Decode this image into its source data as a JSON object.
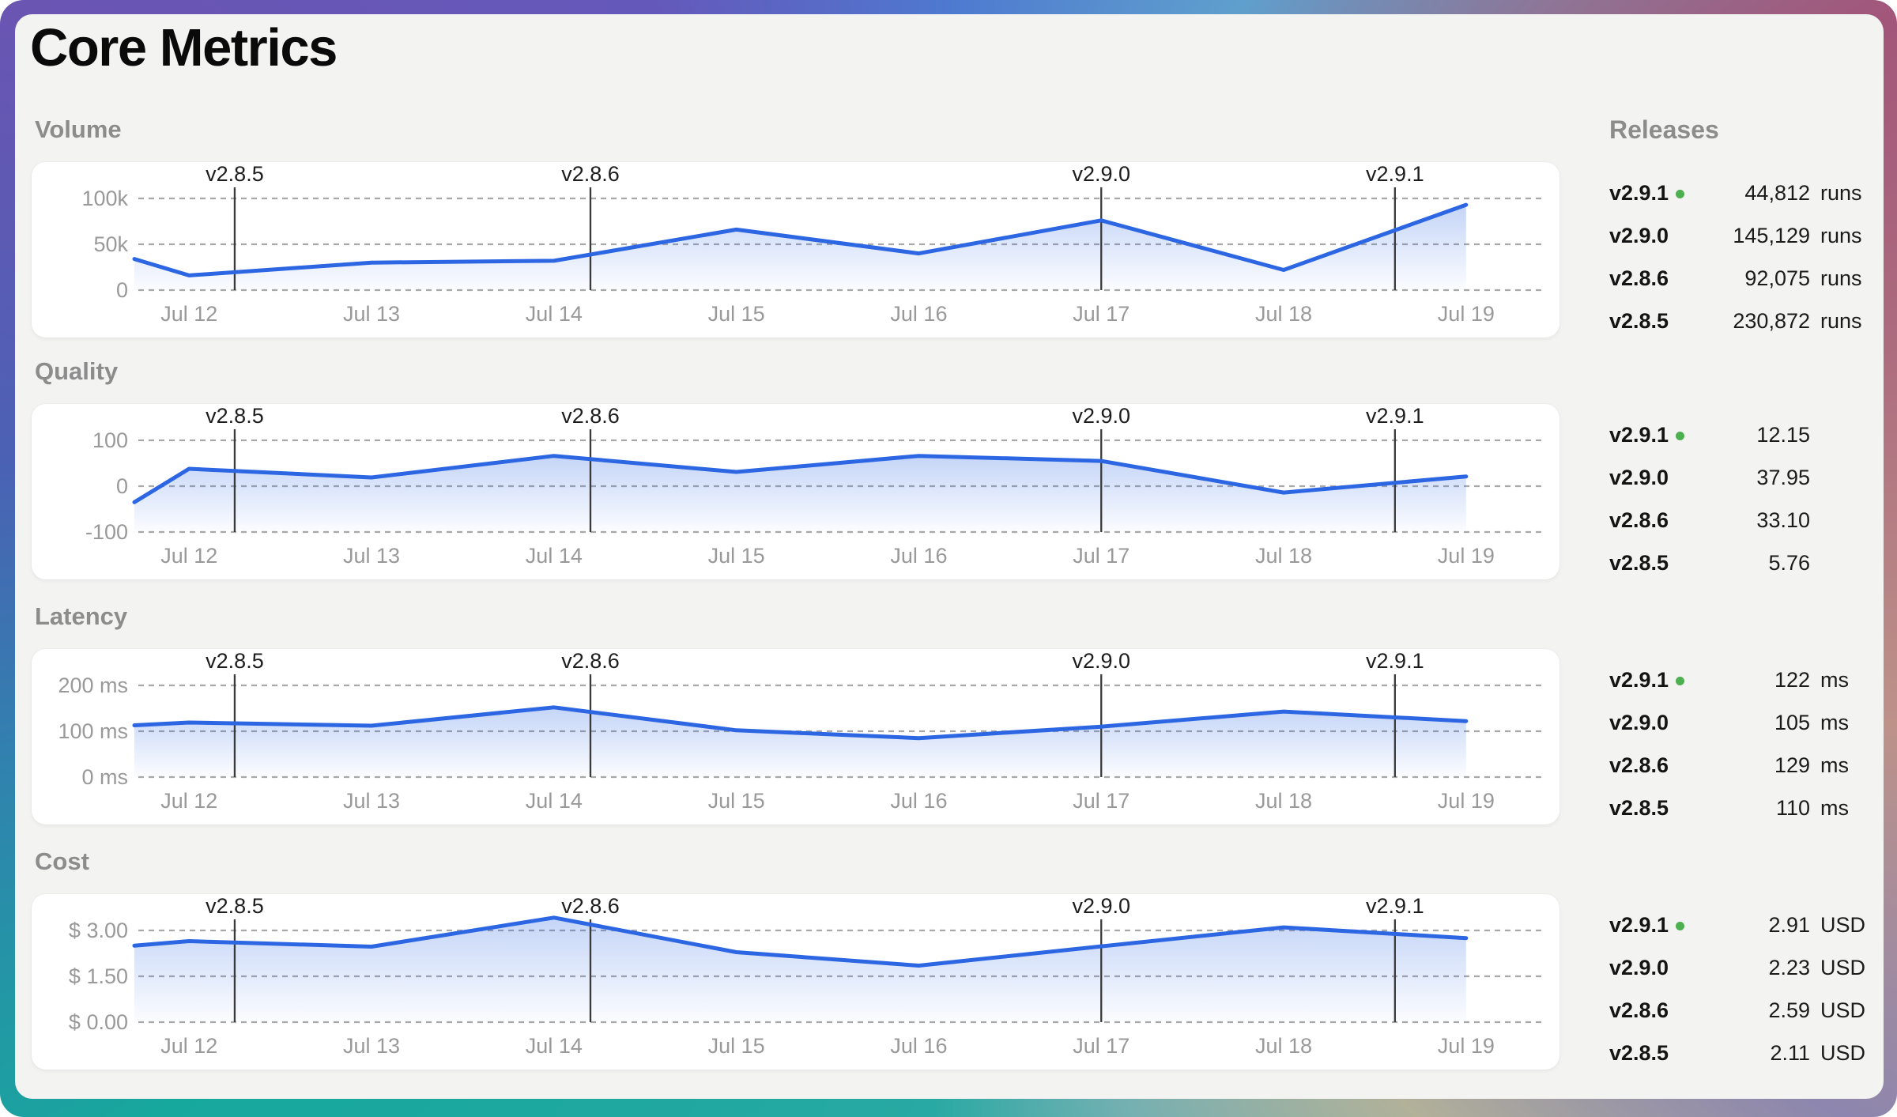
{
  "title": "Core Metrics",
  "colors": {
    "accent_line": "#2c66e2",
    "fill_top": "rgba(45,104,228,0.28)",
    "fill_bottom": "rgba(45,104,228,0.02)",
    "panel_bg": "#f3f3f2",
    "card_bg": "#ffffff",
    "grid": "#a8a8a8",
    "axis_text": "#999999",
    "marker_line": "#3a3a3a",
    "marker_text": "#1d1d1d",
    "section_label": "#8c8c8c",
    "release_dot_green": "#4caf50",
    "frame_gradient": [
      "#6a55b3",
      "#4e79d0",
      "#5f9fcd",
      "#a2567a",
      "#bd9289",
      "#8d86ae",
      "#b2b199",
      "#28a9a3",
      "#17a89d",
      "#4b61b4"
    ]
  },
  "x_tick_days": [
    12,
    13,
    14,
    15,
    16,
    17,
    18,
    19
  ],
  "x_tick_labels": [
    "Jul 12",
    "Jul 13",
    "Jul 14",
    "Jul 15",
    "Jul 16",
    "Jul 17",
    "Jul 18",
    "Jul 19"
  ],
  "release_markers": [
    {
      "label": "v2.8.5",
      "day": 12.25
    },
    {
      "label": "v2.8.6",
      "day": 14.2
    },
    {
      "label": "v2.9.0",
      "day": 17.0
    },
    {
      "label": "v2.9.1",
      "day": 18.61
    }
  ],
  "chart_data": [
    {
      "type": "line",
      "title": "Volume",
      "x": [
        11.7,
        12,
        13,
        14,
        15,
        16,
        17,
        18,
        19
      ],
      "values": [
        34000,
        16000,
        30000,
        32000,
        66000,
        40000,
        76000,
        22000,
        93000
      ],
      "y_ticks": [
        {
          "label": "100k",
          "value": 100000
        },
        {
          "label": "50k",
          "value": 50000
        },
        {
          "label": "0",
          "value": 0
        }
      ],
      "ylim": [
        0,
        100000
      ],
      "xlabel": "",
      "ylabel": "",
      "grid": "dashed-horizontal"
    },
    {
      "type": "line",
      "title": "Quality",
      "x": [
        11.7,
        12,
        13,
        14,
        15,
        16,
        17,
        18,
        19
      ],
      "values": [
        -35,
        38,
        19,
        66,
        31,
        66,
        55,
        -14,
        21
      ],
      "y_ticks": [
        {
          "label": "100",
          "value": 100
        },
        {
          "label": "0",
          "value": 0
        },
        {
          "label": "-100",
          "value": -100
        }
      ],
      "ylim": [
        -100,
        100
      ],
      "xlabel": "",
      "ylabel": "",
      "grid": "dashed-horizontal"
    },
    {
      "type": "line",
      "title": "Latency",
      "x": [
        11.7,
        12,
        13,
        14,
        15,
        16,
        17,
        18,
        19
      ],
      "values": [
        113,
        119,
        112,
        152,
        102,
        85,
        110,
        143,
        122
      ],
      "y_ticks": [
        {
          "label": "200 ms",
          "value": 200
        },
        {
          "label": "100 ms",
          "value": 100
        },
        {
          "label": "0 ms",
          "value": 0
        }
      ],
      "ylim": [
        0,
        200
      ],
      "xlabel": "",
      "ylabel": "",
      "grid": "dashed-horizontal"
    },
    {
      "type": "line",
      "title": "Cost",
      "x": [
        11.7,
        12,
        13,
        14,
        15,
        16,
        17,
        18,
        19
      ],
      "values": [
        2.5,
        2.65,
        2.47,
        3.42,
        2.29,
        1.85,
        2.48,
        3.1,
        2.75
      ],
      "y_ticks": [
        {
          "label": "$ 3.00",
          "value": 3.0
        },
        {
          "label": "$ 1.50",
          "value": 1.5
        },
        {
          "label": "$ 0.00",
          "value": 0
        }
      ],
      "ylim": [
        0,
        3.0
      ],
      "xlabel": "",
      "ylabel": "",
      "grid": "dashed-horizontal"
    }
  ],
  "releases_panel": {
    "header": "Releases",
    "groups": [
      {
        "metric": "Volume",
        "rows": [
          {
            "version": "v2.9.1",
            "latest": true,
            "value": "44,812",
            "unit": "runs"
          },
          {
            "version": "v2.9.0",
            "latest": false,
            "value": "145,129",
            "unit": "runs"
          },
          {
            "version": "v2.8.6",
            "latest": false,
            "value": "92,075",
            "unit": "runs"
          },
          {
            "version": "v2.8.5",
            "latest": false,
            "value": "230,872",
            "unit": "runs"
          }
        ]
      },
      {
        "metric": "Quality",
        "rows": [
          {
            "version": "v2.9.1",
            "latest": true,
            "value": "12.15",
            "unit": ""
          },
          {
            "version": "v2.9.0",
            "latest": false,
            "value": "37.95",
            "unit": ""
          },
          {
            "version": "v2.8.6",
            "latest": false,
            "value": "33.10",
            "unit": ""
          },
          {
            "version": "v2.8.5",
            "latest": false,
            "value": "5.76",
            "unit": ""
          }
        ]
      },
      {
        "metric": "Latency",
        "rows": [
          {
            "version": "v2.9.1",
            "latest": true,
            "value": "122",
            "unit": "ms"
          },
          {
            "version": "v2.9.0",
            "latest": false,
            "value": "105",
            "unit": "ms"
          },
          {
            "version": "v2.8.6",
            "latest": false,
            "value": "129",
            "unit": "ms"
          },
          {
            "version": "v2.8.5",
            "latest": false,
            "value": "110",
            "unit": "ms"
          }
        ]
      },
      {
        "metric": "Cost",
        "rows": [
          {
            "version": "v2.9.1",
            "latest": true,
            "value": "2.91",
            "unit": "USD"
          },
          {
            "version": "v2.9.0",
            "latest": false,
            "value": "2.23",
            "unit": "USD"
          },
          {
            "version": "v2.8.6",
            "latest": false,
            "value": "2.59",
            "unit": "USD"
          },
          {
            "version": "v2.8.5",
            "latest": false,
            "value": "2.11",
            "unit": "USD"
          }
        ]
      }
    ]
  }
}
